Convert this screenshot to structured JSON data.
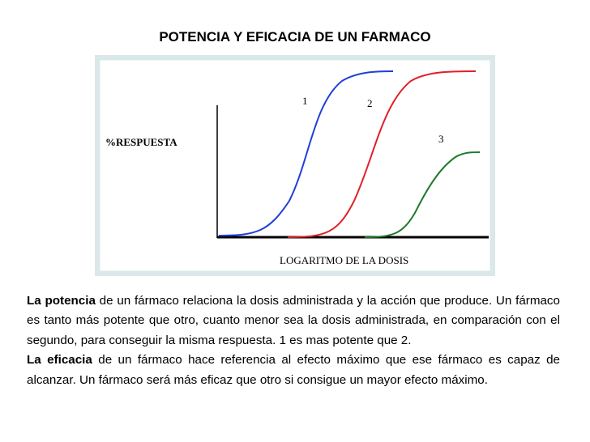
{
  "header": {
    "title": "POTENCIA Y EFICACIA DE UN FARMACO"
  },
  "figure": {
    "y_label": "%RESPUESTA",
    "x_label": "LOGARITMO DE LA DOSIS",
    "curve_labels": [
      "1",
      "2",
      "3"
    ]
  },
  "paragraphs": [
    {
      "lead": "La potencia",
      "text": "de un fármaco relaciona la dosis administrada y la acción que produce. Un fármaco es tanto más potente que otro, cuanto menor sea la dosis administrada, en comparación con el segundo, para conseguir la misma respuesta. 1 es mas potente que 2."
    },
    {
      "lead": "La eficacia",
      "text": "de un fármaco hace referencia al efecto máximo que ese fármaco es capaz de alcanzar. Un fármaco será más eficaz que otro si consigue un mayor efecto máximo."
    }
  ]
}
